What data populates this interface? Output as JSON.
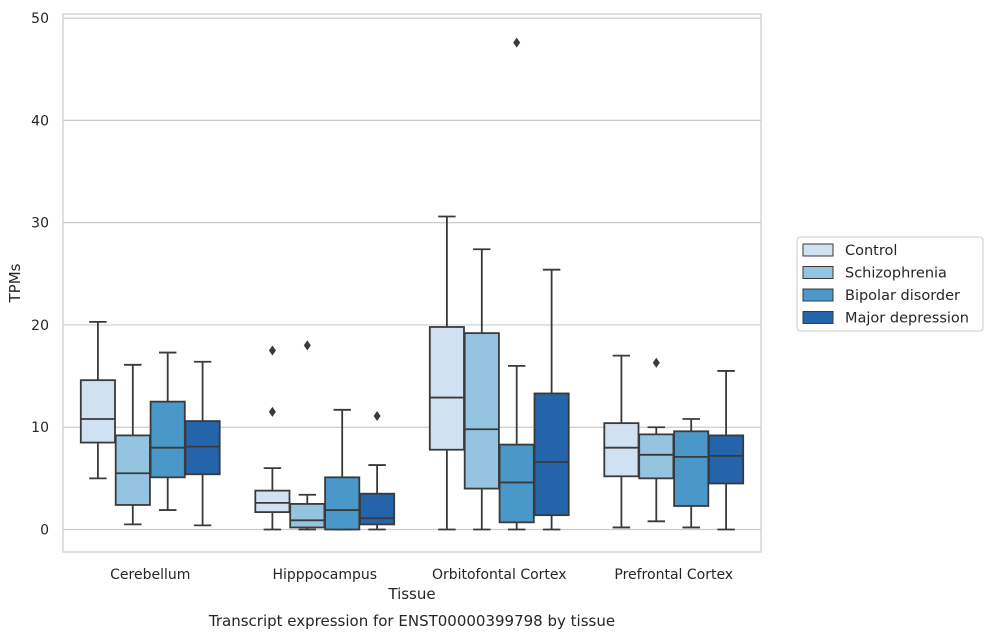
{
  "chart_data": {
    "type": "box",
    "title": "Transcript expression for ENST00000399798 by tissue",
    "xlabel": "Tissue",
    "ylabel": "TPMs",
    "ylim": [
      -2.2,
      50.4
    ],
    "yticks": [
      0,
      10,
      20,
      30,
      40,
      50
    ],
    "grid": "horizontal",
    "legend_position": "right",
    "categories": [
      "Cerebellum",
      "Hipppocampus",
      "Orbitofontal Cortex",
      "Prefrontal Cortex"
    ],
    "series": [
      {
        "name": "Control",
        "color": "#d0e1f2",
        "boxes": [
          {
            "whislo": 5.0,
            "q1": 8.5,
            "med": 10.8,
            "q3": 14.6,
            "whishi": 20.3,
            "fliers": []
          },
          {
            "whislo": 0.0,
            "q1": 1.7,
            "med": 2.6,
            "q3": 3.8,
            "whishi": 6.0,
            "fliers": [
              11.5,
              17.5
            ]
          },
          {
            "whislo": 0.0,
            "q1": 7.8,
            "med": 12.9,
            "q3": 19.8,
            "whishi": 30.6,
            "fliers": []
          },
          {
            "whislo": 0.2,
            "q1": 5.2,
            "med": 8.0,
            "q3": 10.4,
            "whishi": 17.0,
            "fliers": []
          }
        ]
      },
      {
        "name": "Schizophrenia",
        "color": "#94c4df",
        "boxes": [
          {
            "whislo": 0.5,
            "q1": 2.4,
            "med": 5.5,
            "q3": 9.2,
            "whishi": 16.1,
            "fliers": []
          },
          {
            "whislo": 0.0,
            "q1": 0.2,
            "med": 0.9,
            "q3": 2.5,
            "whishi": 3.4,
            "fliers": [
              18.0
            ]
          },
          {
            "whislo": 0.0,
            "q1": 4.0,
            "med": 9.8,
            "q3": 19.2,
            "whishi": 27.4,
            "fliers": []
          },
          {
            "whislo": 0.8,
            "q1": 5.0,
            "med": 7.3,
            "q3": 9.3,
            "whishi": 10.0,
            "fliers": [
              16.3
            ]
          }
        ]
      },
      {
        "name": "Bipolar disorder",
        "color": "#4a98c9",
        "boxes": [
          {
            "whislo": 1.9,
            "q1": 5.1,
            "med": 8.0,
            "q3": 12.5,
            "whishi": 17.3,
            "fliers": []
          },
          {
            "whislo": 0.0,
            "q1": 0.0,
            "med": 1.9,
            "q3": 5.1,
            "whishi": 11.7,
            "fliers": []
          },
          {
            "whislo": 0.0,
            "q1": 0.7,
            "med": 4.6,
            "q3": 8.3,
            "whishi": 16.0,
            "fliers": [
              47.6
            ]
          },
          {
            "whislo": 0.2,
            "q1": 2.3,
            "med": 7.1,
            "q3": 9.6,
            "whishi": 10.8,
            "fliers": []
          }
        ]
      },
      {
        "name": "Major depression",
        "color": "#2464aa",
        "boxes": [
          {
            "whislo": 0.4,
            "q1": 5.4,
            "med": 8.1,
            "q3": 10.6,
            "whishi": 16.4,
            "fliers": []
          },
          {
            "whislo": 0.0,
            "q1": 0.5,
            "med": 1.1,
            "q3": 3.5,
            "whishi": 6.3,
            "fliers": [
              11.1
            ]
          },
          {
            "whislo": 0.0,
            "q1": 1.4,
            "med": 6.6,
            "q3": 13.3,
            "whishi": 25.4,
            "fliers": []
          },
          {
            "whislo": 0.0,
            "q1": 4.5,
            "med": 7.2,
            "q3": 9.2,
            "whishi": 15.5,
            "fliers": []
          }
        ]
      }
    ]
  }
}
